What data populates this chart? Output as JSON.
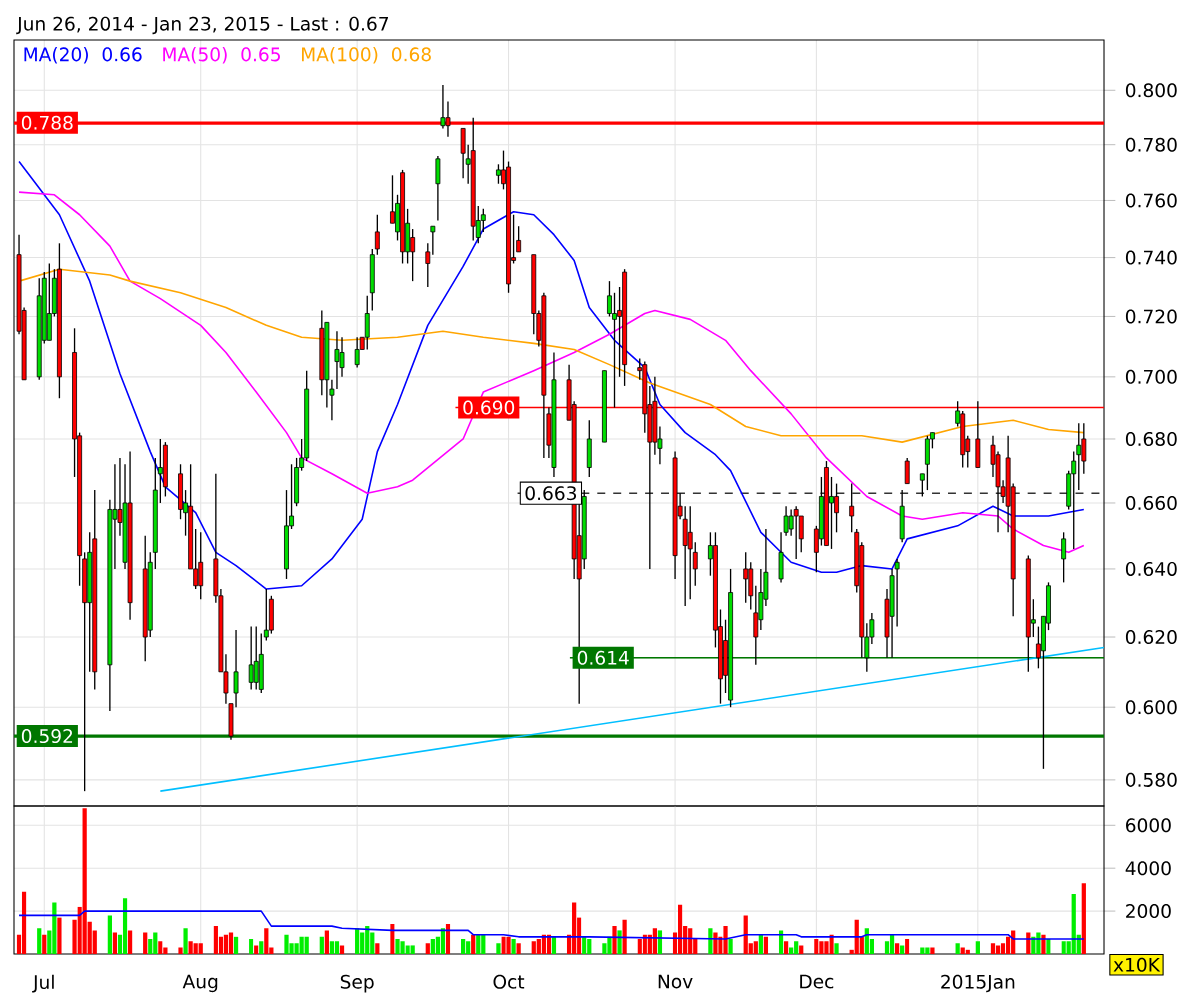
{
  "chart_data": [
    {
      "type": "candlestick",
      "title": "Jun 26, 2014 - Jan 23, 2015 - Last : 0.67",
      "x": [
        "2014-06-26",
        "2014-06-27",
        "2014-06-30",
        "2014-07-01",
        "2014-07-02",
        "2014-07-03",
        "2014-07-04",
        "2014-07-07",
        "2014-07-08",
        "2014-07-09",
        "2014-07-10",
        "2014-07-11",
        "2014-07-14",
        "2014-07-15",
        "2014-07-16",
        "2014-07-17",
        "2014-07-18",
        "2014-07-21",
        "2014-07-22",
        "2014-07-23",
        "2014-07-24",
        "2014-07-25",
        "2014-07-28",
        "2014-07-29",
        "2014-07-30",
        "2014-07-31",
        "2014-08-01",
        "2014-08-04",
        "2014-08-05",
        "2014-08-06",
        "2014-08-07",
        "2014-08-08",
        "2014-08-11",
        "2014-08-12",
        "2014-08-13",
        "2014-08-14",
        "2014-08-15",
        "2014-08-18",
        "2014-08-19",
        "2014-08-20",
        "2014-08-21",
        "2014-08-22",
        "2014-08-25",
        "2014-08-26",
        "2014-08-27",
        "2014-08-28",
        "2014-08-29",
        "2014-09-01",
        "2014-09-02",
        "2014-09-03",
        "2014-09-04",
        "2014-09-05",
        "2014-09-08",
        "2014-09-09",
        "2014-09-10",
        "2014-09-11",
        "2014-09-12",
        "2014-09-15",
        "2014-09-16",
        "2014-09-17",
        "2014-09-18",
        "2014-09-19",
        "2014-09-22",
        "2014-09-23",
        "2014-09-24",
        "2014-09-25",
        "2014-09-26",
        "2014-09-29",
        "2014-09-30",
        "2014-10-01",
        "2014-10-02",
        "2014-10-03",
        "2014-10-06",
        "2014-10-07",
        "2014-10-08",
        "2014-10-09",
        "2014-10-10",
        "2014-10-13",
        "2014-10-14",
        "2014-10-15",
        "2014-10-16",
        "2014-10-17",
        "2014-10-20",
        "2014-10-21",
        "2014-10-22",
        "2014-10-23",
        "2014-10-24",
        "2014-10-27",
        "2014-10-28",
        "2014-10-29",
        "2014-10-30",
        "2014-10-31",
        "2014-11-03",
        "2014-11-04",
        "2014-11-05",
        "2014-11-06",
        "2014-11-07",
        "2014-11-10",
        "2014-11-11",
        "2014-11-12",
        "2014-11-13",
        "2014-11-14",
        "2014-11-17",
        "2014-11-18",
        "2014-11-19",
        "2014-11-20",
        "2014-11-21",
        "2014-11-24",
        "2014-11-25",
        "2014-11-26",
        "2014-11-27",
        "2014-11-28",
        "2014-12-01",
        "2014-12-02",
        "2014-12-03",
        "2014-12-04",
        "2014-12-05",
        "2014-12-08",
        "2014-12-09",
        "2014-12-10",
        "2014-12-11",
        "2014-12-12",
        "2014-12-15",
        "2014-12-16",
        "2014-12-17",
        "2014-12-18",
        "2014-12-19",
        "2014-12-22",
        "2014-12-23",
        "2014-12-24",
        "2014-12-29",
        "2014-12-30",
        "2014-12-31",
        "2015-01-02",
        "2015-01-05",
        "2015-01-06",
        "2015-01-07",
        "2015-01-08",
        "2015-01-09",
        "2015-01-12",
        "2015-01-13",
        "2015-01-14",
        "2015-01-15",
        "2015-01-16",
        "2015-01-19",
        "2015-01-20",
        "2015-01-21",
        "2015-01-22",
        "2015-01-23"
      ],
      "ohlc": [
        [
          0.741,
          0.748,
          0.714,
          0.715
        ],
        [
          0.722,
          0.723,
          0.699,
          0.699
        ],
        [
          0.7,
          0.733,
          0.699,
          0.727
        ],
        [
          0.712,
          0.735,
          0.711,
          0.733
        ],
        [
          0.712,
          0.738,
          0.712,
          0.721
        ],
        [
          0.721,
          0.736,
          0.72,
          0.733
        ],
        [
          0.736,
          0.745,
          0.693,
          0.7
        ],
        [
          0.708,
          0.716,
          0.668,
          0.68
        ],
        [
          0.681,
          0.682,
          0.635,
          0.644
        ],
        [
          0.643,
          0.645,
          0.577,
          0.63
        ],
        [
          0.63,
          0.651,
          0.61,
          0.645
        ],
        [
          0.649,
          0.664,
          0.605,
          0.61
        ],
        [
          0.612,
          0.661,
          0.599,
          0.658
        ],
        [
          0.655,
          0.672,
          0.64,
          0.658
        ],
        [
          0.658,
          0.674,
          0.65,
          0.654
        ],
        [
          0.642,
          0.672,
          0.64,
          0.66
        ],
        [
          0.66,
          0.676,
          0.625,
          0.63
        ],
        [
          0.64,
          0.65,
          0.613,
          0.62
        ],
        [
          0.622,
          0.645,
          0.62,
          0.642
        ],
        [
          0.645,
          0.674,
          0.64,
          0.664
        ],
        [
          0.669,
          0.68,
          0.66,
          0.671
        ],
        [
          0.678,
          0.679,
          0.662,
          0.665
        ],
        [
          0.669,
          0.672,
          0.655,
          0.658
        ],
        [
          0.657,
          0.664,
          0.65,
          0.66
        ],
        [
          0.659,
          0.672,
          0.64,
          0.64
        ],
        [
          0.64,
          0.652,
          0.634,
          0.635
        ],
        [
          0.642,
          0.651,
          0.631,
          0.635
        ],
        [
          0.643,
          0.669,
          0.63,
          0.632
        ],
        [
          0.632,
          0.634,
          0.61,
          0.61
        ],
        [
          0.61,
          0.615,
          0.601,
          0.604
        ],
        [
          0.601,
          0.601,
          0.591,
          0.592
        ],
        [
          0.604,
          0.622,
          0.6,
          0.61
        ],
        [
          0.607,
          0.623,
          0.605,
          0.612
        ],
        [
          0.607,
          0.623,
          0.605,
          0.613
        ],
        [
          0.605,
          0.621,
          0.604,
          0.615
        ],
        [
          0.62,
          0.634,
          0.619,
          0.622
        ],
        [
          0.631,
          0.632,
          0.621,
          0.622
        ],
        [
          0.64,
          0.664,
          0.637,
          0.653
        ],
        [
          0.653,
          0.672,
          0.652,
          0.656
        ],
        [
          0.66,
          0.674,
          0.659,
          0.671
        ],
        [
          0.671,
          0.68,
          0.67,
          0.674
        ],
        [
          0.674,
          0.702,
          0.673,
          0.696
        ],
        [
          0.716,
          0.722,
          0.694,
          0.699
        ],
        [
          0.699,
          0.718,
          0.69,
          0.718
        ],
        [
          0.694,
          0.699,
          0.686,
          0.696
        ],
        [
          0.705,
          0.715,
          0.696,
          0.709
        ],
        [
          0.703,
          0.713,
          0.7,
          0.708
        ],
        [
          0.704,
          0.713,
          0.703,
          0.709
        ],
        [
          0.713,
          0.713,
          0.709,
          0.709
        ],
        [
          0.713,
          0.727,
          0.709,
          0.721
        ],
        [
          0.728,
          0.743,
          0.722,
          0.741
        ],
        [
          0.749,
          0.755,
          0.741,
          0.743
        ],
        [
          0.756,
          0.769,
          0.752,
          0.752
        ],
        [
          0.749,
          0.762,
          0.746,
          0.759
        ],
        [
          0.77,
          0.771,
          0.738,
          0.742
        ],
        [
          0.742,
          0.757,
          0.738,
          0.752
        ],
        [
          0.747,
          0.75,
          0.732,
          0.742
        ],
        [
          0.742,
          0.745,
          0.73,
          0.738
        ],
        [
          0.749,
          0.751,
          0.741,
          0.751
        ],
        [
          0.766,
          0.776,
          0.753,
          0.775
        ],
        [
          0.787,
          0.802,
          0.786,
          0.79
        ],
        [
          0.79,
          0.796,
          0.783,
          0.787
        ],
        [
          0.786,
          0.786,
          0.768,
          0.777
        ],
        [
          0.773,
          0.78,
          0.766,
          0.775
        ],
        [
          0.778,
          0.79,
          0.746,
          0.751
        ],
        [
          0.747,
          0.758,
          0.745,
          0.753
        ],
        [
          0.753,
          0.757,
          0.749,
          0.755
        ],
        [
          0.769,
          0.773,
          0.766,
          0.771
        ],
        [
          0.771,
          0.778,
          0.764,
          0.766
        ],
        [
          0.772,
          0.774,
          0.728,
          0.731
        ],
        [
          0.74,
          0.755,
          0.738,
          0.739
        ],
        [
          0.746,
          0.751,
          0.742,
          0.742
        ],
        [
          0.741,
          0.741,
          0.714,
          0.721
        ],
        [
          0.721,
          0.722,
          0.71,
          0.712
        ],
        [
          0.727,
          0.728,
          0.674,
          0.694
        ],
        [
          0.688,
          0.69,
          0.674,
          0.678
        ],
        [
          0.671,
          0.708,
          0.668,
          0.699
        ],
        [
          0.699,
          0.704,
          0.686,
          0.686
        ],
        [
          0.691,
          0.692,
          0.637,
          0.643
        ],
        [
          0.65,
          0.664,
          0.601,
          0.637
        ],
        [
          0.643,
          0.664,
          0.64,
          0.662
        ],
        [
          0.671,
          0.686,
          0.668,
          0.68
        ],
        [
          0.679,
          0.702,
          0.679,
          0.702
        ],
        [
          0.721,
          0.732,
          0.72,
          0.727
        ],
        [
          0.719,
          0.728,
          0.69,
          0.721
        ],
        [
          0.722,
          0.73,
          0.7,
          0.72
        ],
        [
          0.735,
          0.736,
          0.697,
          0.704
        ],
        [
          0.703,
          0.706,
          0.699,
          0.702
        ],
        [
          0.704,
          0.705,
          0.682,
          0.688
        ],
        [
          0.691,
          0.697,
          0.64,
          0.679
        ],
        [
          0.692,
          0.7,
          0.675,
          0.679
        ],
        [
          0.677,
          0.684,
          0.672,
          0.68
        ],
        [
          0.674,
          0.676,
          0.637,
          0.644
        ],
        [
          0.659,
          0.663,
          0.655,
          0.656
        ],
        [
          0.655,
          0.659,
          0.629,
          0.647
        ],
        [
          0.651,
          0.659,
          0.631,
          0.646
        ],
        [
          0.645,
          0.648,
          0.635,
          0.64
        ],
        [
          0.643,
          0.651,
          0.638,
          0.647
        ],
        [
          0.647,
          0.651,
          0.617,
          0.622
        ],
        [
          0.623,
          0.628,
          0.601,
          0.608
        ],
        [
          0.619,
          0.625,
          0.604,
          0.609
        ],
        [
          0.602,
          0.64,
          0.6,
          0.633
        ],
        [
          0.64,
          0.645,
          0.63,
          0.637
        ],
        [
          0.64,
          0.642,
          0.628,
          0.632
        ],
        [
          0.627,
          0.635,
          0.612,
          0.62
        ],
        [
          0.625,
          0.64,
          0.622,
          0.633
        ],
        [
          0.631,
          0.652,
          0.629,
          0.639
        ],
        [
          0.637,
          0.651,
          0.636,
          0.645
        ],
        [
          0.651,
          0.659,
          0.65,
          0.656
        ],
        [
          0.652,
          0.658,
          0.65,
          0.656
        ],
        [
          0.658,
          0.659,
          0.643,
          0.656
        ],
        [
          0.656,
          0.656,
          0.645,
          0.649
        ],
        [
          0.652,
          0.653,
          0.639,
          0.645
        ],
        [
          0.649,
          0.668,
          0.647,
          0.662
        ],
        [
          0.671,
          0.673,
          0.647,
          0.647
        ],
        [
          0.66,
          0.668,
          0.646,
          0.662
        ],
        [
          0.662,
          0.666,
          0.651,
          0.657
        ],
        [
          0.659,
          0.666,
          0.651,
          0.656
        ],
        [
          0.651,
          0.652,
          0.633,
          0.635
        ],
        [
          0.647,
          0.648,
          0.614,
          0.62
        ],
        [
          0.614,
          0.624,
          0.61,
          0.62
        ],
        [
          0.62,
          0.627,
          0.618,
          0.625
        ],
        [
          0.631,
          0.634,
          0.614,
          0.62
        ],
        [
          0.626,
          0.64,
          0.614,
          0.638
        ],
        [
          0.64,
          0.643,
          0.623,
          0.642
        ],
        [
          0.649,
          0.664,
          0.648,
          0.659
        ],
        [
          0.673,
          0.674,
          0.666,
          0.666
        ],
        [
          0.667,
          0.669,
          0.662,
          0.669
        ],
        [
          0.672,
          0.681,
          0.664,
          0.68
        ],
        [
          0.68,
          0.682,
          0.677,
          0.682
        ],
        [
          0.685,
          0.692,
          0.684,
          0.689
        ],
        [
          0.688,
          0.689,
          0.671,
          0.675
        ],
        [
          0.68,
          0.681,
          0.671,
          0.676
        ],
        [
          0.68,
          0.692,
          0.671,
          0.671
        ],
        [
          0.678,
          0.681,
          0.668,
          0.672
        ],
        [
          0.675,
          0.676,
          0.651,
          0.665
        ],
        [
          0.665,
          0.667,
          0.66,
          0.662
        ],
        [
          0.674,
          0.681,
          0.651,
          0.659
        ],
        [
          0.665,
          0.666,
          0.626,
          0.637
        ],
        [
          0.643,
          0.644,
          0.61,
          0.62
        ],
        [
          0.624,
          0.631,
          0.62,
          0.625
        ],
        [
          0.618,
          0.623,
          0.611,
          0.614
        ],
        [
          0.616,
          0.626,
          0.583,
          0.626
        ],
        [
          0.624,
          0.636,
          0.622,
          0.635
        ],
        [
          0.643,
          0.651,
          0.636,
          0.649
        ],
        [
          0.659,
          0.67,
          0.658,
          0.669
        ],
        [
          0.669,
          0.676,
          0.646,
          0.673
        ],
        [
          0.675,
          0.685,
          0.664,
          0.678
        ],
        [
          0.68,
          0.685,
          0.669,
          0.673
        ]
      ],
      "series": [
        {
          "name": "MA(20)",
          "type": "line",
          "color": "#0000ff",
          "x": [
            "2014-06-26",
            "2014-07-04",
            "2014-07-10",
            "2014-07-16",
            "2014-07-22",
            "2014-07-25",
            "2014-07-31",
            "2014-08-04",
            "2014-08-08",
            "2014-08-14",
            "2014-08-21",
            "2014-08-27",
            "2014-09-02",
            "2014-09-05",
            "2014-09-09",
            "2014-09-15",
            "2014-09-22",
            "2014-09-26",
            "2014-10-02",
            "2014-10-06",
            "2014-10-10",
            "2014-10-14",
            "2014-10-17",
            "2014-10-22",
            "2014-10-28",
            "2014-10-31",
            "2014-11-05",
            "2014-11-11",
            "2014-11-14",
            "2014-11-20",
            "2014-11-26",
            "2014-12-02",
            "2014-12-05",
            "2014-12-10",
            "2014-12-16",
            "2014-12-19",
            "2014-12-29",
            "2015-01-05",
            "2015-01-09",
            "2015-01-16",
            "2015-01-23"
          ],
          "values": [
            0.774,
            0.755,
            0.732,
            0.701,
            0.676,
            0.665,
            0.657,
            0.645,
            0.641,
            0.634,
            0.635,
            0.643,
            0.655,
            0.676,
            0.691,
            0.717,
            0.737,
            0.75,
            0.756,
            0.755,
            0.748,
            0.739,
            0.723,
            0.712,
            0.703,
            0.691,
            0.682,
            0.675,
            0.67,
            0.651,
            0.642,
            0.639,
            0.639,
            0.641,
            0.64,
            0.649,
            0.653,
            0.659,
            0.656,
            0.656,
            0.658
          ]
        },
        {
          "name": "MA(50)",
          "type": "line",
          "color": "#ff00ff",
          "x": [
            "2014-06-26",
            "2014-07-03",
            "2014-07-08",
            "2014-07-14",
            "2014-07-18",
            "2014-07-24",
            "2014-08-01",
            "2014-08-06",
            "2014-08-12",
            "2014-08-18",
            "2014-08-21",
            "2014-08-27",
            "2014-09-03",
            "2014-09-09",
            "2014-09-12",
            "2014-09-22",
            "2014-09-26",
            "2014-10-06",
            "2014-10-14",
            "2014-10-21",
            "2014-10-28",
            "2014-10-30",
            "2014-11-06",
            "2014-11-13",
            "2014-11-18",
            "2014-11-26",
            "2014-12-03",
            "2014-12-11",
            "2014-12-18",
            "2014-12-22",
            "2014-12-30",
            "2015-01-06",
            "2015-01-09",
            "2015-01-15",
            "2015-01-20",
            "2015-01-23"
          ],
          "values": [
            0.763,
            0.762,
            0.755,
            0.744,
            0.732,
            0.726,
            0.717,
            0.708,
            0.695,
            0.682,
            0.674,
            0.669,
            0.663,
            0.665,
            0.667,
            0.68,
            0.695,
            0.702,
            0.708,
            0.714,
            0.721,
            0.722,
            0.719,
            0.712,
            0.702,
            0.688,
            0.674,
            0.662,
            0.656,
            0.655,
            0.657,
            0.656,
            0.652,
            0.647,
            0.645,
            0.647
          ]
        },
        {
          "name": "MA(100)",
          "type": "line",
          "color": "#ffa500",
          "x": [
            "2014-06-26",
            "2014-07-04",
            "2014-07-14",
            "2014-07-18",
            "2014-07-28",
            "2014-08-06",
            "2014-08-14",
            "2014-08-21",
            "2014-08-29",
            "2014-09-09",
            "2014-09-18",
            "2014-09-26",
            "2014-10-06",
            "2014-10-14",
            "2014-10-21",
            "2014-10-29",
            "2014-11-10",
            "2014-11-17",
            "2014-11-24",
            "2014-12-02",
            "2014-12-10",
            "2014-12-18",
            "2014-12-30",
            "2015-01-09",
            "2015-01-16",
            "2015-01-23"
          ],
          "values": [
            0.732,
            0.736,
            0.734,
            0.732,
            0.728,
            0.723,
            0.717,
            0.713,
            0.712,
            0.713,
            0.715,
            0.713,
            0.711,
            0.709,
            0.704,
            0.698,
            0.691,
            0.684,
            0.681,
            0.681,
            0.681,
            0.679,
            0.684,
            0.686,
            0.683,
            0.682
          ]
        },
        {
          "type": "line",
          "color": "#00bfff",
          "x": [
            "2014-07-24",
            "2015-01-27"
          ],
          "values": [
            0.577,
            0.617
          ]
        }
      ],
      "annotations": [
        "0.66",
        "0.65",
        "0.68"
      ],
      "ref_lines": [
        {
          "axis": "y",
          "value": 0.788,
          "label": "0.788",
          "color": "#ff0000"
        },
        {
          "axis": "y",
          "value": 0.69,
          "label": "0.690",
          "color": "#ff0000"
        },
        {
          "axis": "y",
          "value": 0.663,
          "label": "0.663",
          "color": "#333333",
          "line_style": "dashed"
        },
        {
          "axis": "y",
          "value": 0.614,
          "label": "0.614",
          "color": "#007700"
        },
        {
          "axis": "y",
          "value": 0.592,
          "label": "0.592",
          "color": "#007700"
        }
      ],
      "xlim": [
        "2014-06-25",
        "2015-01-27"
      ],
      "xticks": [
        {
          "value": "2014-07-01",
          "label": null
        },
        {
          "value": "2014-08-01",
          "label": null
        },
        {
          "value": "2014-09-01",
          "label": null
        },
        {
          "value": "2014-10-01",
          "label": null
        },
        {
          "value": "2014-11-03",
          "label": null
        },
        {
          "value": "2014-12-01",
          "label": null
        },
        {
          "value": "2015-01-02",
          "label": null
        }
      ],
      "ylim": [
        0.573,
        0.819
      ],
      "log": true,
      "yticks": [
        {
          "value": 0.58,
          "label": "0.580"
        },
        {
          "value": 0.6,
          "label": "0.600"
        },
        {
          "value": 0.62,
          "label": "0.620"
        },
        {
          "value": 0.64,
          "label": "0.640"
        },
        {
          "value": 0.66,
          "label": "0.660"
        },
        {
          "value": 0.68,
          "label": "0.680"
        },
        {
          "value": 0.7,
          "label": "0.700"
        },
        {
          "value": 0.72,
          "label": "0.720"
        },
        {
          "value": 0.74,
          "label": "0.740"
        },
        {
          "value": 0.76,
          "label": "0.760"
        },
        {
          "value": 0.78,
          "label": "0.780"
        },
        {
          "value": 0.8,
          "label": "0.800"
        }
      ],
      "grid": true,
      "legend": "top left",
      "tick_labels": "y"
    },
    {
      "type": "bar",
      "x": [
        "2014-06-26",
        "2014-06-27",
        "2014-06-30",
        "2014-07-01",
        "2014-07-02",
        "2014-07-03",
        "2014-07-04",
        "2014-07-07",
        "2014-07-08",
        "2014-07-09",
        "2014-07-10",
        "2014-07-11",
        "2014-07-14",
        "2014-07-15",
        "2014-07-16",
        "2014-07-17",
        "2014-07-18",
        "2014-07-21",
        "2014-07-22",
        "2014-07-23",
        "2014-07-24",
        "2014-07-25",
        "2014-07-28",
        "2014-07-29",
        "2014-07-30",
        "2014-07-31",
        "2014-08-01",
        "2014-08-04",
        "2014-08-05",
        "2014-08-06",
        "2014-08-07",
        "2014-08-08",
        "2014-08-11",
        "2014-08-12",
        "2014-08-13",
        "2014-08-14",
        "2014-08-15",
        "2014-08-18",
        "2014-08-19",
        "2014-08-20",
        "2014-08-21",
        "2014-08-22",
        "2014-08-25",
        "2014-08-26",
        "2014-08-27",
        "2014-08-28",
        "2014-08-29",
        "2014-09-01",
        "2014-09-02",
        "2014-09-03",
        "2014-09-04",
        "2014-09-05",
        "2014-09-08",
        "2014-09-09",
        "2014-09-10",
        "2014-09-11",
        "2014-09-12",
        "2014-09-15",
        "2014-09-16",
        "2014-09-17",
        "2014-09-18",
        "2014-09-19",
        "2014-09-22",
        "2014-09-23",
        "2014-09-24",
        "2014-09-25",
        "2014-09-26",
        "2014-09-29",
        "2014-09-30",
        "2014-10-01",
        "2014-10-02",
        "2014-10-03",
        "2014-10-06",
        "2014-10-07",
        "2014-10-08",
        "2014-10-09",
        "2014-10-10",
        "2014-10-13",
        "2014-10-14",
        "2014-10-15",
        "2014-10-16",
        "2014-10-17",
        "2014-10-20",
        "2014-10-21",
        "2014-10-22",
        "2014-10-23",
        "2014-10-24",
        "2014-10-27",
        "2014-10-28",
        "2014-10-29",
        "2014-10-30",
        "2014-10-31",
        "2014-11-03",
        "2014-11-04",
        "2014-11-05",
        "2014-11-06",
        "2014-11-07",
        "2014-11-10",
        "2014-11-11",
        "2014-11-12",
        "2014-11-13",
        "2014-11-14",
        "2014-11-17",
        "2014-11-18",
        "2014-11-19",
        "2014-11-20",
        "2014-11-21",
        "2014-11-24",
        "2014-11-25",
        "2014-11-26",
        "2014-11-27",
        "2014-11-28",
        "2014-12-01",
        "2014-12-02",
        "2014-12-03",
        "2014-12-04",
        "2014-12-05",
        "2014-12-08",
        "2014-12-09",
        "2014-12-10",
        "2014-12-11",
        "2014-12-12",
        "2014-12-15",
        "2014-12-16",
        "2014-12-17",
        "2014-12-18",
        "2014-12-19",
        "2014-12-22",
        "2014-12-23",
        "2014-12-24",
        "2014-12-29",
        "2014-12-30",
        "2014-12-31",
        "2015-01-02",
        "2015-01-05",
        "2015-01-06",
        "2015-01-07",
        "2015-01-08",
        "2015-01-09",
        "2015-01-12",
        "2015-01-13",
        "2015-01-14",
        "2015-01-15",
        "2015-01-16",
        "2015-01-19",
        "2015-01-20",
        "2015-01-21",
        "2015-01-22",
        "2015-01-23"
      ],
      "series": [
        {
          "type": "bar",
          "values": [
            900,
            2900,
            1200,
            900,
            1100,
            2400,
            1700,
            1600,
            2200,
            6800,
            1500,
            1100,
            1800,
            1000,
            900,
            2600,
            1100,
            1000,
            700,
            1000,
            600,
            300,
            300,
            1200,
            600,
            500,
            500,
            1300,
            800,
            900,
            1000,
            800,
            700,
            400,
            600,
            1200,
            300,
            900,
            500,
            500,
            800,
            800,
            800,
            1100,
            600,
            600,
            400,
            1200,
            1000,
            1300,
            1000,
            500,
            1400,
            700,
            600,
            400,
            400,
            500,
            700,
            800,
            1200,
            1400,
            700,
            600,
            900,
            900,
            900,
            500,
            800,
            800,
            700,
            500,
            600,
            700,
            900,
            900,
            800,
            900,
            2400,
            1700,
            800,
            700,
            500,
            800,
            1300,
            1100,
            1600,
            700,
            900,
            900,
            1200,
            1100,
            1000,
            2300,
            1300,
            1200,
            700,
            1200,
            1000,
            800,
            1300,
            700,
            1800,
            500,
            600,
            900,
            800,
            1100,
            600,
            300,
            600,
            400,
            700,
            600,
            600,
            900,
            500,
            200,
            1600,
            800,
            1200,
            700,
            600,
            900,
            500,
            400,
            700,
            300,
            300,
            300,
            500,
            300,
            200,
            600,
            500,
            400,
            500,
            800,
            1100,
            1000,
            800,
            1000,
            900,
            700,
            600,
            600,
            2800,
            900,
            3300
          ],
          "colors": [
            "#ff0000",
            "#ff0000",
            "#00ee00",
            "#ff0000",
            "#00ee00",
            "#00ee00",
            "#ff0000",
            "#ff0000",
            "#ff0000",
            "#ff0000",
            "#ff0000",
            "#ff0000",
            "#00ee00",
            "#ff0000",
            "#00ee00",
            "#00ee00",
            "#ff0000",
            "#ff0000",
            "#00ee00",
            "#00ee00",
            "#ff0000",
            "#ff0000",
            "#ff0000",
            "#00ee00",
            "#ff0000",
            "#ff0000",
            "#ff0000",
            "#ff0000",
            "#ff0000",
            "#ff0000",
            "#ff0000",
            "#00ee00",
            "#00ee00",
            "#ff0000",
            "#00ee00",
            "#ff0000",
            "#ff0000",
            "#00ee00",
            "#00ee00",
            "#00ee00",
            "#00ee00",
            "#00ee00",
            "#00ee00",
            "#ff0000",
            "#00ee00",
            "#00ee00",
            "#ff0000",
            "#00ee00",
            "#00ee00",
            "#00ee00",
            "#00ee00",
            "#ff0000",
            "#ff0000",
            "#00ee00",
            "#00ee00",
            "#00ee00",
            "#00ee00",
            "#ff0000",
            "#00ee00",
            "#00ee00",
            "#00ee00",
            "#ff0000",
            "#00ee00",
            "#00ee00",
            "#ff0000",
            "#00ee00",
            "#00ee00",
            "#00ee00",
            "#ff0000",
            "#ff0000",
            "#00ee00",
            "#ff0000",
            "#ff0000",
            "#ff0000",
            "#ff0000",
            "#ff0000",
            "#00ee00",
            "#ff0000",
            "#ff0000",
            "#ff0000",
            "#00ee00",
            "#00ee00",
            "#00ee00",
            "#00ee00",
            "#ff0000",
            "#00ee00",
            "#ff0000",
            "#ff0000",
            "#ff0000",
            "#ff0000",
            "#ff0000",
            "#00ee00",
            "#ff0000",
            "#ff0000",
            "#ff0000",
            "#ff0000",
            "#ff0000",
            "#00ee00",
            "#ff0000",
            "#ff0000",
            "#ff0000",
            "#00ee00",
            "#ff0000",
            "#ff0000",
            "#ff0000",
            "#00ee00",
            "#ff0000",
            "#00ee00",
            "#ff0000",
            "#00ee00",
            "#00ee00",
            "#ff0000",
            "#ff0000",
            "#ff0000",
            "#ff0000",
            "#ff0000",
            "#00ee00",
            "#ff0000",
            "#ff0000",
            "#ff0000",
            "#00ee00",
            "#00ee00",
            "#00ee00",
            "#00ee00",
            "#ff0000",
            "#00ee00",
            "#ff0000",
            "#00ee00",
            "#00ee00",
            "#ff0000",
            "#00ee00",
            "#ff0000",
            "#ff0000",
            "#00ee00",
            "#ff0000",
            "#ff0000",
            "#ff0000",
            "#ff0000",
            "#ff0000",
            "#ff0000",
            "#00ee00",
            "#00ee00",
            "#ff0000",
            "#00ee00",
            "#00ee00",
            "#00ee00",
            "#00ee00",
            "#00ee00",
            "#ff0000"
          ]
        },
        {
          "type": "line",
          "color": "#0000ff",
          "x": [
            "2014-06-26",
            "2014-07-08",
            "2014-07-09",
            "2014-08-13",
            "2014-08-15",
            "2014-08-27",
            "2014-08-29",
            "2014-09-08",
            "2014-09-23",
            "2014-09-24",
            "2014-09-30",
            "2014-10-03",
            "2014-10-06",
            "2014-10-17",
            "2014-11-13",
            "2014-11-17",
            "2014-11-27",
            "2014-11-28",
            "2014-12-10",
            "2014-12-11",
            "2015-01-08",
            "2015-01-09",
            "2015-01-23"
          ],
          "values": [
            1800,
            1800,
            2000,
            2000,
            1300,
            1300,
            1200,
            1100,
            1100,
            900,
            900,
            800,
            800,
            800,
            700,
            900,
            900,
            800,
            800,
            900,
            900,
            700,
            700
          ]
        }
      ],
      "annotations": [
        "x10K"
      ],
      "xlim": [
        "2014-06-25",
        "2015-01-27"
      ],
      "xticks": [
        {
          "value": "2014-07-01",
          "label": "Jul"
        },
        {
          "value": "2014-08-01",
          "label": "Aug"
        },
        {
          "value": "2014-09-01",
          "label": "Sep"
        },
        {
          "value": "2014-10-01",
          "label": "Oct"
        },
        {
          "value": "2014-11-03",
          "label": "Nov"
        },
        {
          "value": "2014-12-01",
          "label": "Dec"
        },
        {
          "value": "2015-01-02",
          "label": "2015Jan"
        }
      ],
      "ylim": [
        0,
        6900
      ],
      "yticks": [
        2000,
        4000,
        6000
      ],
      "grid": true
    }
  ]
}
